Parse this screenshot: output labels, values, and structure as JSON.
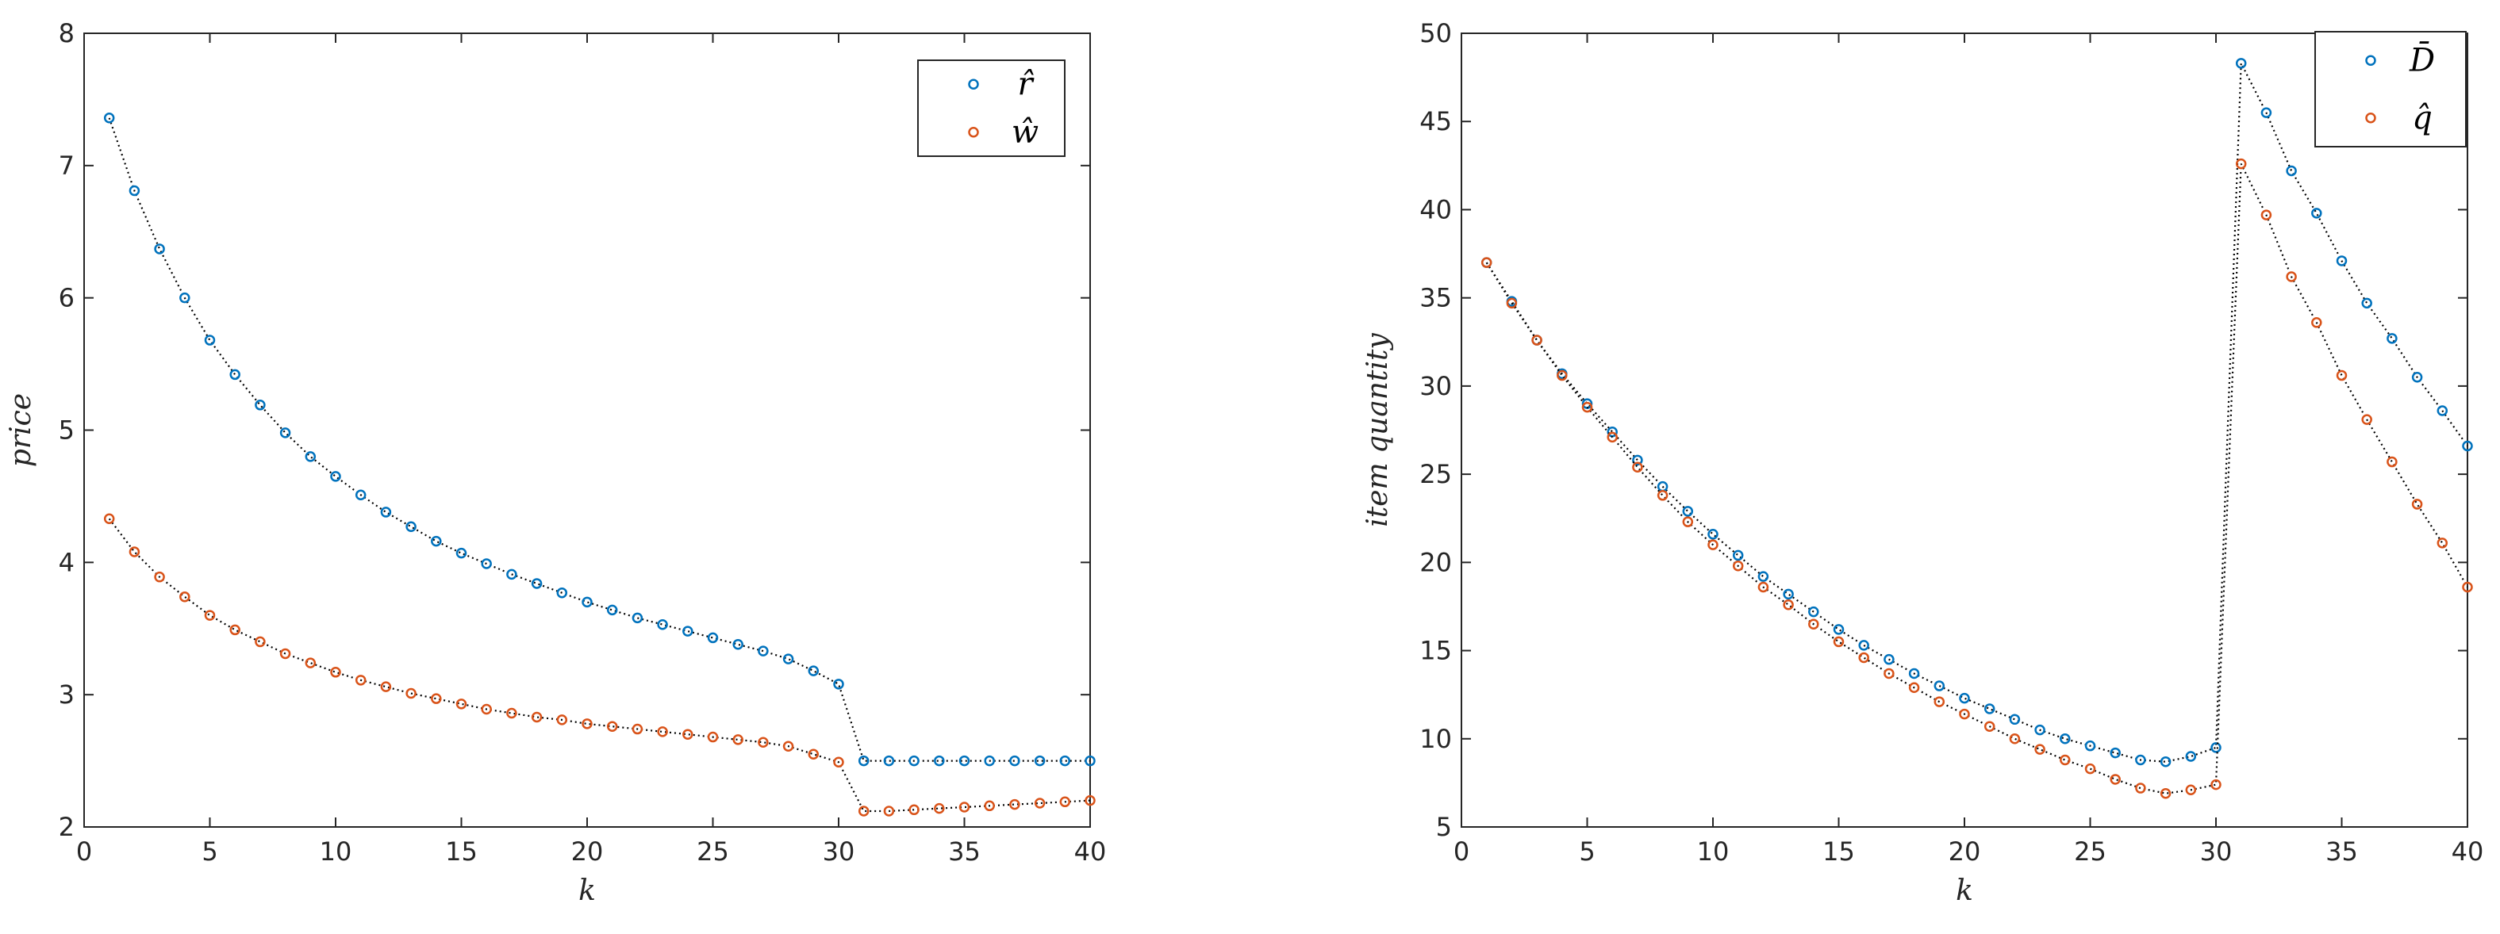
{
  "chart_data": [
    {
      "type": "scatter",
      "title": "",
      "xlabel": "k",
      "ylabel": "price",
      "xlim": [
        0,
        40
      ],
      "ylim": [
        2,
        8
      ],
      "xticks": [
        "0",
        "5",
        "10",
        "15",
        "20",
        "25",
        "30",
        "35",
        "40"
      ],
      "yticks": [
        "2",
        "3",
        "4",
        "5",
        "6",
        "7",
        "8"
      ],
      "grid": false,
      "legend_position": "top-right",
      "x": [
        1,
        2,
        3,
        4,
        5,
        6,
        7,
        8,
        9,
        10,
        11,
        12,
        13,
        14,
        15,
        16,
        17,
        18,
        19,
        20,
        21,
        22,
        23,
        24,
        25,
        26,
        27,
        28,
        29,
        30,
        31,
        32,
        33,
        34,
        35,
        36,
        37,
        38,
        39,
        40
      ],
      "series": [
        {
          "name": "r̂",
          "color": "#0072BD",
          "values": [
            7.36,
            6.81,
            6.37,
            6.0,
            5.68,
            5.42,
            5.19,
            4.98,
            4.8,
            4.65,
            4.51,
            4.38,
            4.27,
            4.16,
            4.07,
            3.99,
            3.91,
            3.84,
            3.77,
            3.7,
            3.64,
            3.58,
            3.53,
            3.48,
            3.43,
            3.38,
            3.33,
            3.27,
            3.18,
            3.08,
            2.5,
            2.5,
            2.5,
            2.5,
            2.5,
            2.5,
            2.5,
            2.5,
            2.5,
            2.5
          ]
        },
        {
          "name": "ŵ",
          "color": "#D95319",
          "values": [
            4.33,
            4.08,
            3.89,
            3.74,
            3.6,
            3.49,
            3.4,
            3.31,
            3.24,
            3.17,
            3.11,
            3.06,
            3.01,
            2.97,
            2.93,
            2.89,
            2.86,
            2.83,
            2.81,
            2.78,
            2.76,
            2.74,
            2.72,
            2.7,
            2.68,
            2.66,
            2.64,
            2.61,
            2.55,
            2.49,
            2.12,
            2.12,
            2.13,
            2.14,
            2.15,
            2.16,
            2.17,
            2.18,
            2.19,
            2.2
          ]
        }
      ]
    },
    {
      "type": "scatter",
      "title": "",
      "xlabel": "k",
      "ylabel": "item quantity",
      "xlim": [
        0,
        40
      ],
      "ylim": [
        5,
        50
      ],
      "xticks": [
        "0",
        "5",
        "10",
        "15",
        "20",
        "25",
        "30",
        "35",
        "40"
      ],
      "yticks": [
        "5",
        "10",
        "15",
        "20",
        "25",
        "30",
        "35",
        "40",
        "45",
        "50"
      ],
      "grid": false,
      "legend_position": "top-right",
      "x": [
        1,
        2,
        3,
        4,
        5,
        6,
        7,
        8,
        9,
        10,
        11,
        12,
        13,
        14,
        15,
        16,
        17,
        18,
        19,
        20,
        21,
        22,
        23,
        24,
        25,
        26,
        27,
        28,
        29,
        30,
        31,
        32,
        33,
        34,
        35,
        36,
        37,
        38,
        39,
        40
      ],
      "series": [
        {
          "name": "D̄",
          "color": "#0072BD",
          "values": [
            37.0,
            34.8,
            32.6,
            30.7,
            29.0,
            27.4,
            25.8,
            24.3,
            22.9,
            21.6,
            20.4,
            19.2,
            18.2,
            17.2,
            16.2,
            15.3,
            14.5,
            13.7,
            13.0,
            12.3,
            11.7,
            11.1,
            10.5,
            10.0,
            9.6,
            9.2,
            8.8,
            8.7,
            9.0,
            9.5,
            48.3,
            45.5,
            42.2,
            39.8,
            37.1,
            34.7,
            32.7,
            30.5,
            28.6,
            26.6
          ]
        },
        {
          "name": "q̂",
          "color": "#D95319",
          "values": [
            37.0,
            34.7,
            32.6,
            30.6,
            28.8,
            27.1,
            25.4,
            23.8,
            22.3,
            21.0,
            19.8,
            18.6,
            17.6,
            16.5,
            15.5,
            14.6,
            13.7,
            12.9,
            12.1,
            11.4,
            10.7,
            10.0,
            9.4,
            8.8,
            8.3,
            7.7,
            7.2,
            6.9,
            7.1,
            7.4,
            42.6,
            39.7,
            36.2,
            33.6,
            30.6,
            28.1,
            25.7,
            23.3,
            21.1,
            18.6
          ]
        }
      ]
    }
  ]
}
